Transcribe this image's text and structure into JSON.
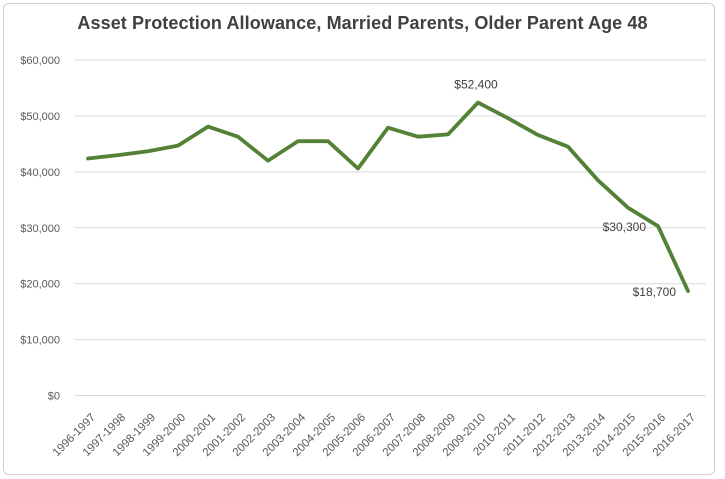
{
  "window": {
    "background": "#FFFFFF",
    "border_color": "#D0CECE"
  },
  "chart_data": {
    "type": "line",
    "title": "Asset Protection Allowance, Married Parents, Older Parent Age 48",
    "xlabel": "",
    "ylabel": "",
    "categories": [
      "1996-1997",
      "1997-1998",
      "1998-1999",
      "1999-2000",
      "2000-2001",
      "2001-2002",
      "2002-2003",
      "2003-2004",
      "2004-2005",
      "2005-2006",
      "2006-2007",
      "2007-2008",
      "2008-2009",
      "2009-2010",
      "2010-2011",
      "2011-2012",
      "2012-2013",
      "2013-2014",
      "2014-2015",
      "2015-2016",
      "2016-2017"
    ],
    "values": [
      42400,
      43000,
      43700,
      44700,
      48100,
      46300,
      42000,
      45500,
      45500,
      40600,
      47900,
      46300,
      46700,
      52400,
      49600,
      46600,
      44500,
      38500,
      33600,
      30300,
      18700
    ],
    "ylim": [
      0,
      60000
    ],
    "ytick_step": 10000,
    "ytick_labels": [
      "$0",
      "$10,000",
      "$20,000",
      "$30,000",
      "$40,000",
      "$50,000",
      "$60,000"
    ],
    "grid": "horizontal",
    "legend": "none",
    "line_color": "#538135",
    "annotations": [
      {
        "category": "2009-2010",
        "text": "$52,400",
        "position": "above"
      },
      {
        "category": "2015-2016",
        "text": "$30,300",
        "position": "left"
      },
      {
        "category": "2016-2017",
        "text": "$18,700",
        "position": "left"
      }
    ],
    "colors": {
      "title": "#404040",
      "axis_labels": "#595959",
      "gridlines": "#D9D9D9",
      "data_labels": "#404040"
    }
  }
}
